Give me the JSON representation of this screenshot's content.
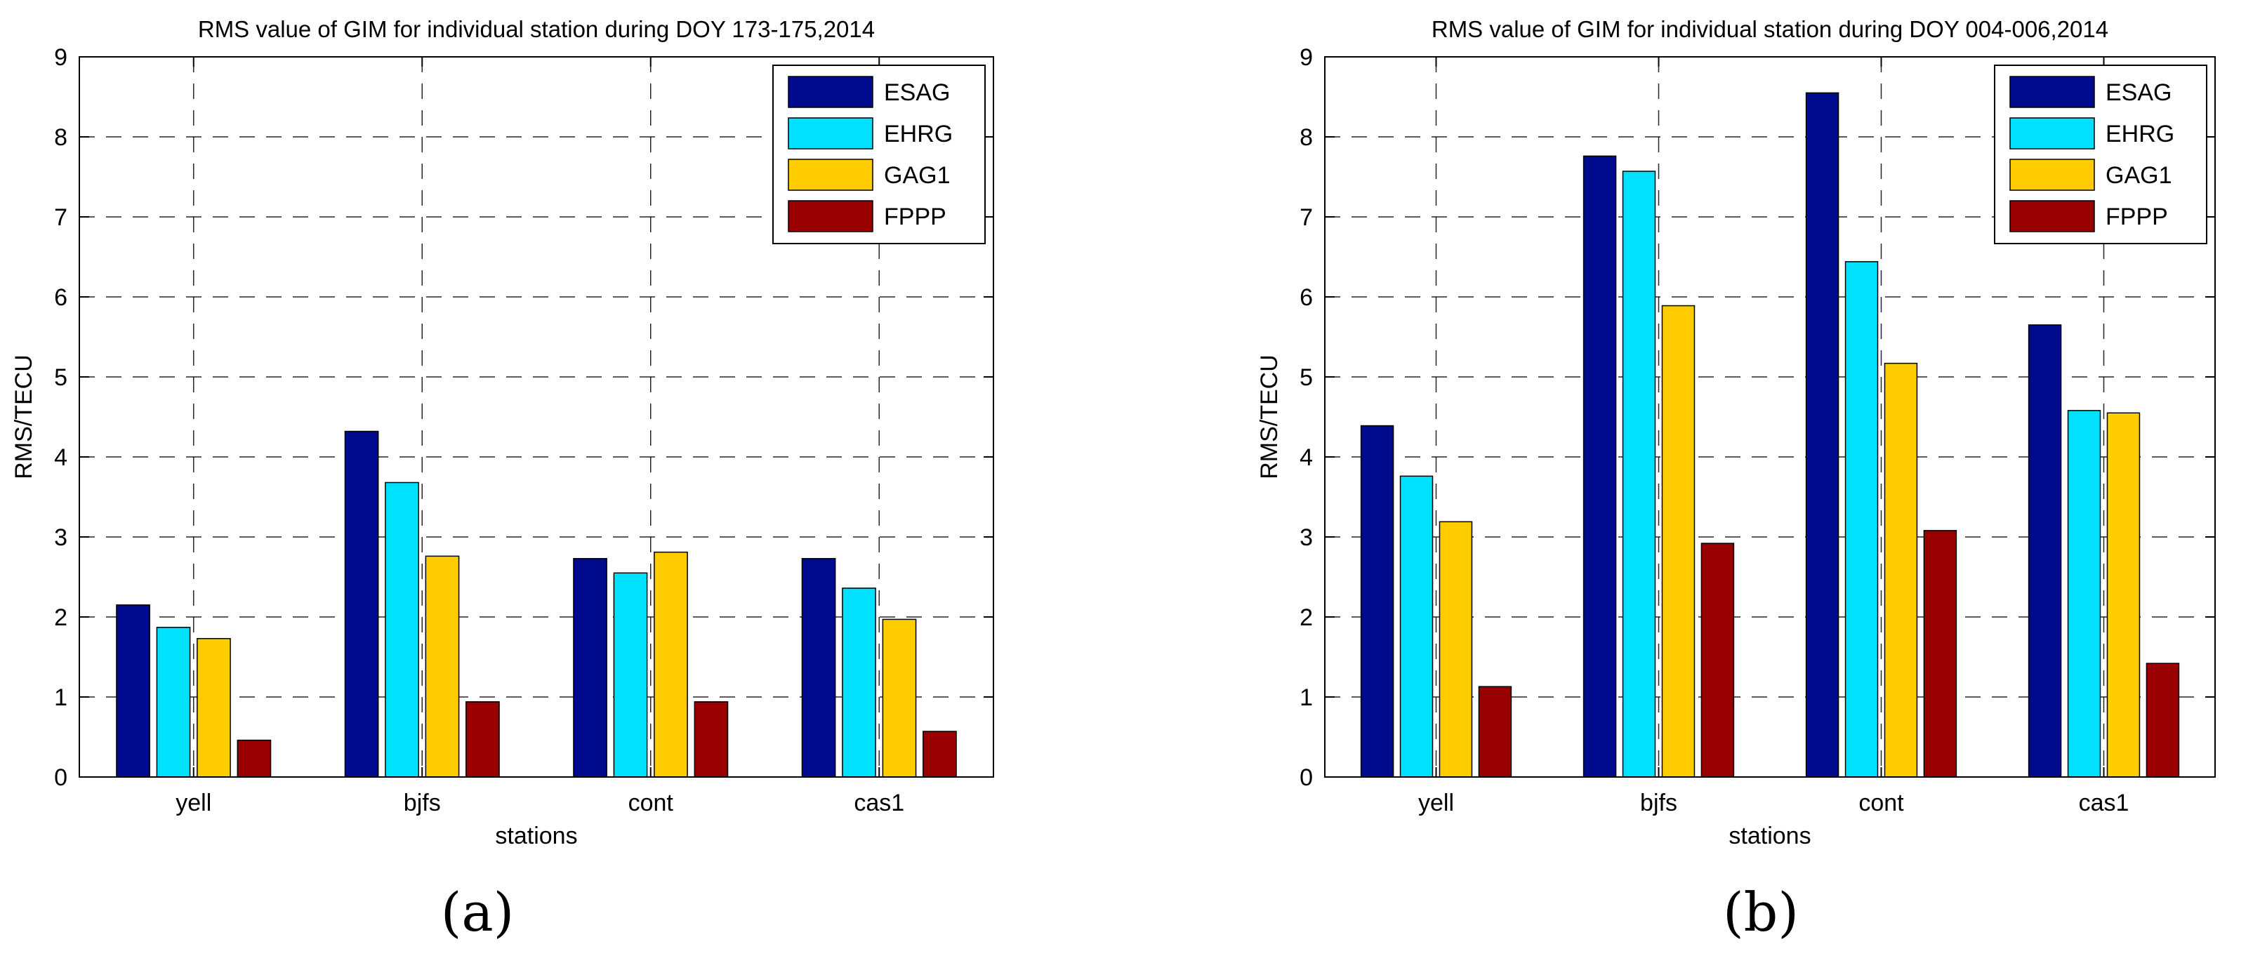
{
  "chart_data": [
    {
      "type": "bar",
      "panel_label": "(a)",
      "title": "RMS value of GIM for individual station during DOY 173-175,2014",
      "xlabel": "stations",
      "ylabel": "RMS/TECU",
      "ylim": [
        0,
        9
      ],
      "yticks": [
        "0",
        "1",
        "2",
        "3",
        "4",
        "5",
        "6",
        "7",
        "8",
        "9"
      ],
      "categories": [
        "yell",
        "bjfs",
        "cont",
        "cas1"
      ],
      "grid": true,
      "legend_position": "top-right",
      "series": [
        {
          "name": "ESAG",
          "color": "#000a8c",
          "values": [
            2.15,
            4.32,
            2.73,
            2.73
          ]
        },
        {
          "name": "EHRG",
          "color": "#00e0ff",
          "values": [
            1.87,
            3.68,
            2.55,
            2.36
          ]
        },
        {
          "name": "GAG1",
          "color": "#ffcc00",
          "values": [
            1.73,
            2.76,
            2.81,
            1.97
          ]
        },
        {
          "name": "FPPP",
          "color": "#990000",
          "values": [
            0.46,
            0.94,
            0.94,
            0.57
          ]
        }
      ]
    },
    {
      "type": "bar",
      "panel_label": "(b)",
      "title": "RMS value of GIM for individual station during DOY 004-006,2014",
      "xlabel": "stations",
      "ylabel": "RMS/TECU",
      "ylim": [
        0,
        9
      ],
      "yticks": [
        "0",
        "1",
        "2",
        "3",
        "4",
        "5",
        "6",
        "7",
        "8",
        "9"
      ],
      "categories": [
        "yell",
        "bjfs",
        "cont",
        "cas1"
      ],
      "grid": true,
      "legend_position": "top-right",
      "series": [
        {
          "name": "ESAG",
          "color": "#000a8c",
          "values": [
            4.39,
            7.76,
            8.55,
            5.65
          ]
        },
        {
          "name": "EHRG",
          "color": "#00e0ff",
          "values": [
            3.76,
            7.57,
            6.44,
            4.58
          ]
        },
        {
          "name": "GAG1",
          "color": "#ffcc00",
          "values": [
            3.19,
            5.89,
            5.17,
            4.55
          ]
        },
        {
          "name": "FPPP",
          "color": "#990000",
          "values": [
            1.13,
            2.92,
            3.08,
            1.42
          ]
        }
      ]
    }
  ]
}
